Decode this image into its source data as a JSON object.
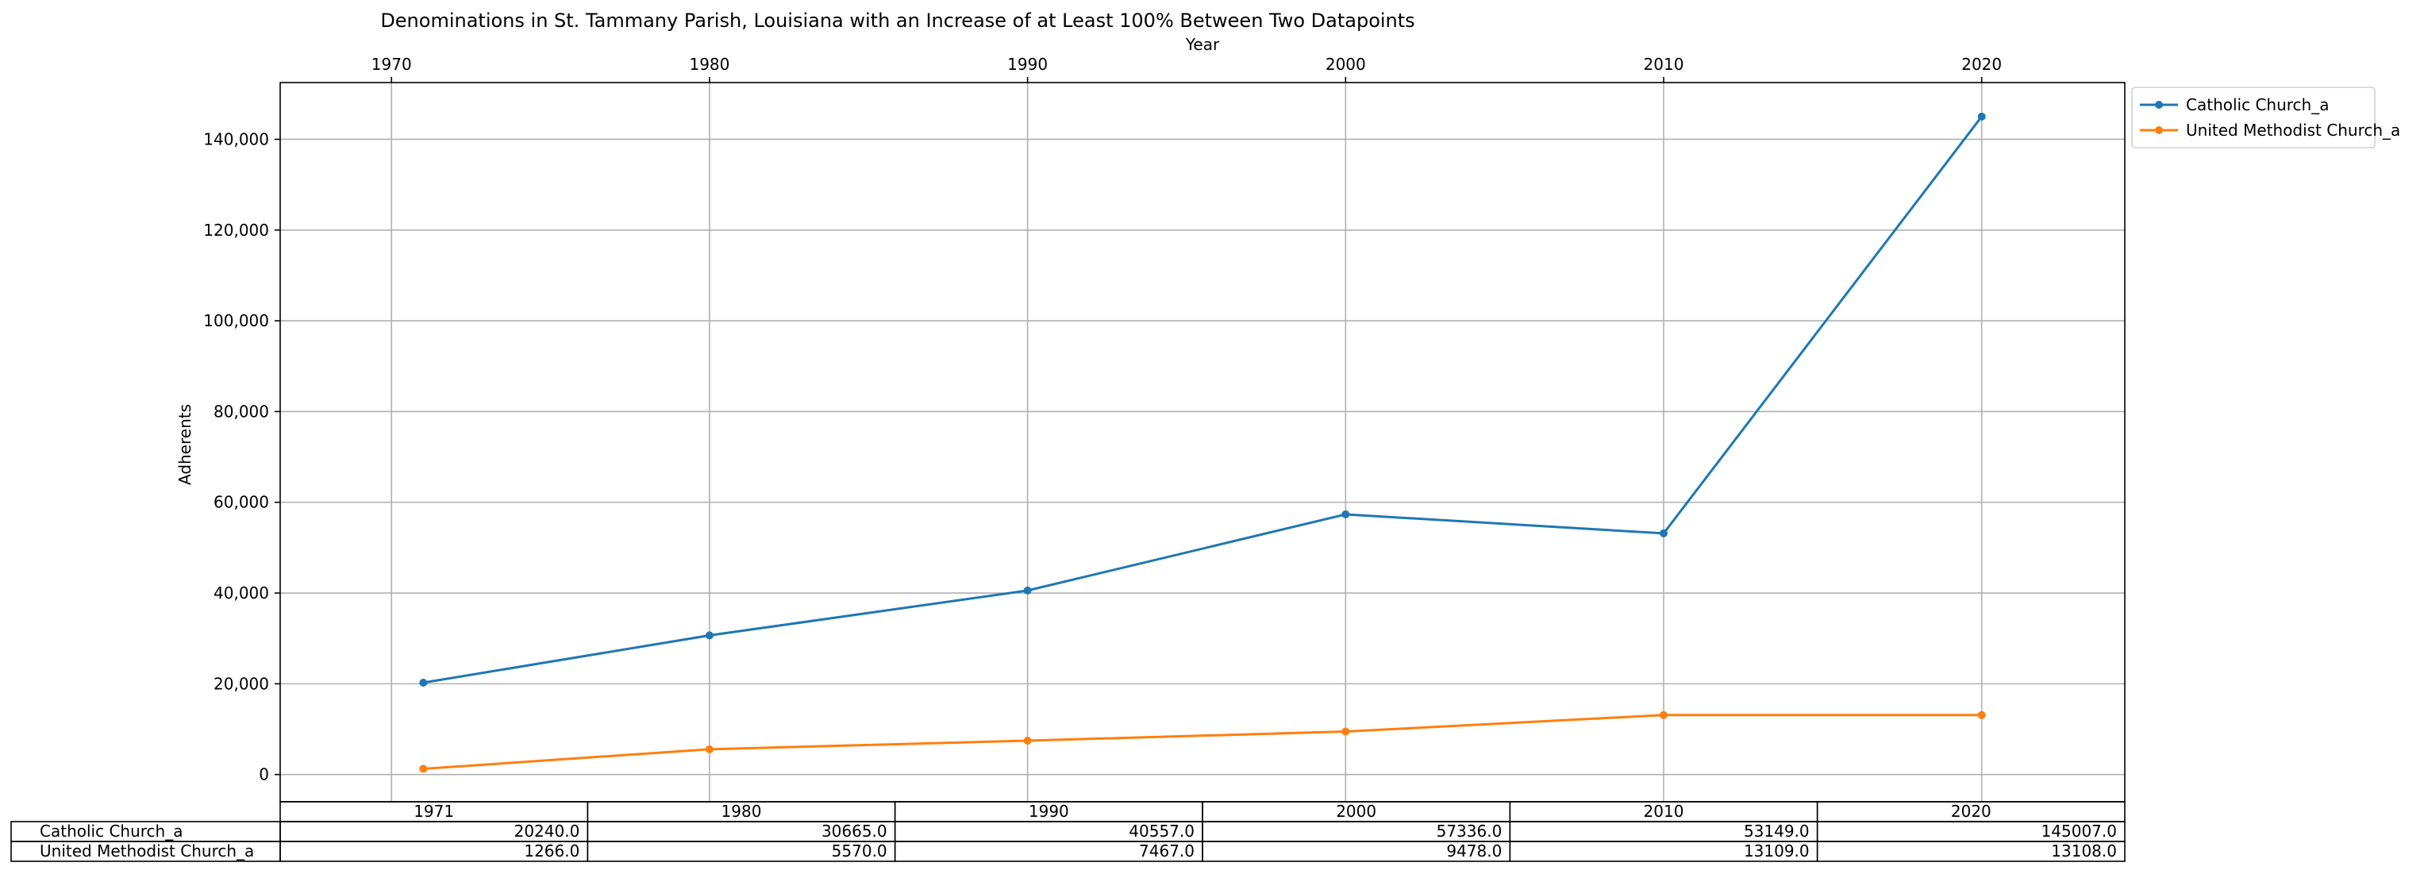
{
  "chart_data": {
    "type": "line",
    "title": "Denominations in St. Tammany Parish, Louisiana with an Increase of at Least 100% Between Two Datapoints",
    "xlabel": "Year",
    "ylabel": "Adherents",
    "x_axis_position": "top",
    "xlim": [
      1966.5,
      2024.5
    ],
    "ylim": [
      -6000,
      152500
    ],
    "x_ticks": [
      1970,
      1980,
      1990,
      2000,
      2010,
      2020
    ],
    "x_tick_labels": [
      "1970",
      "1980",
      "1990",
      "2000",
      "2010",
      "2020"
    ],
    "y_ticks": [
      0,
      20000,
      40000,
      60000,
      80000,
      100000,
      120000,
      140000
    ],
    "y_tick_labels": [
      "0",
      "20,000",
      "40,000",
      "60,000",
      "80,000",
      "100,000",
      "120,000",
      "140,000"
    ],
    "grid": true,
    "legend_position": "outside-top-right",
    "x": [
      1971,
      1980,
      1990,
      2000,
      2010,
      2020
    ],
    "series": [
      {
        "name": "Catholic Church_a",
        "color": "#1f77b4",
        "values": [
          20240,
          30665,
          40557,
          57336,
          53149,
          145007
        ]
      },
      {
        "name": "United Methodist Church_a",
        "color": "#ff7f0e",
        "values": [
          1266,
          5570,
          7467,
          9478,
          13109,
          13108
        ]
      }
    ],
    "table": {
      "columns": [
        "1971",
        "1980",
        "1990",
        "2000",
        "2010",
        "2020"
      ],
      "rows": [
        {
          "label": "Catholic Church_a",
          "cells": [
            "20240.0",
            "30665.0",
            "40557.0",
            "57336.0",
            "53149.0",
            "145007.0"
          ]
        },
        {
          "label": "United Methodist Church_a",
          "cells": [
            "1266.0",
            "5570.0",
            "7467.0",
            "9478.0",
            "13109.0",
            "13108.0"
          ]
        }
      ]
    }
  }
}
